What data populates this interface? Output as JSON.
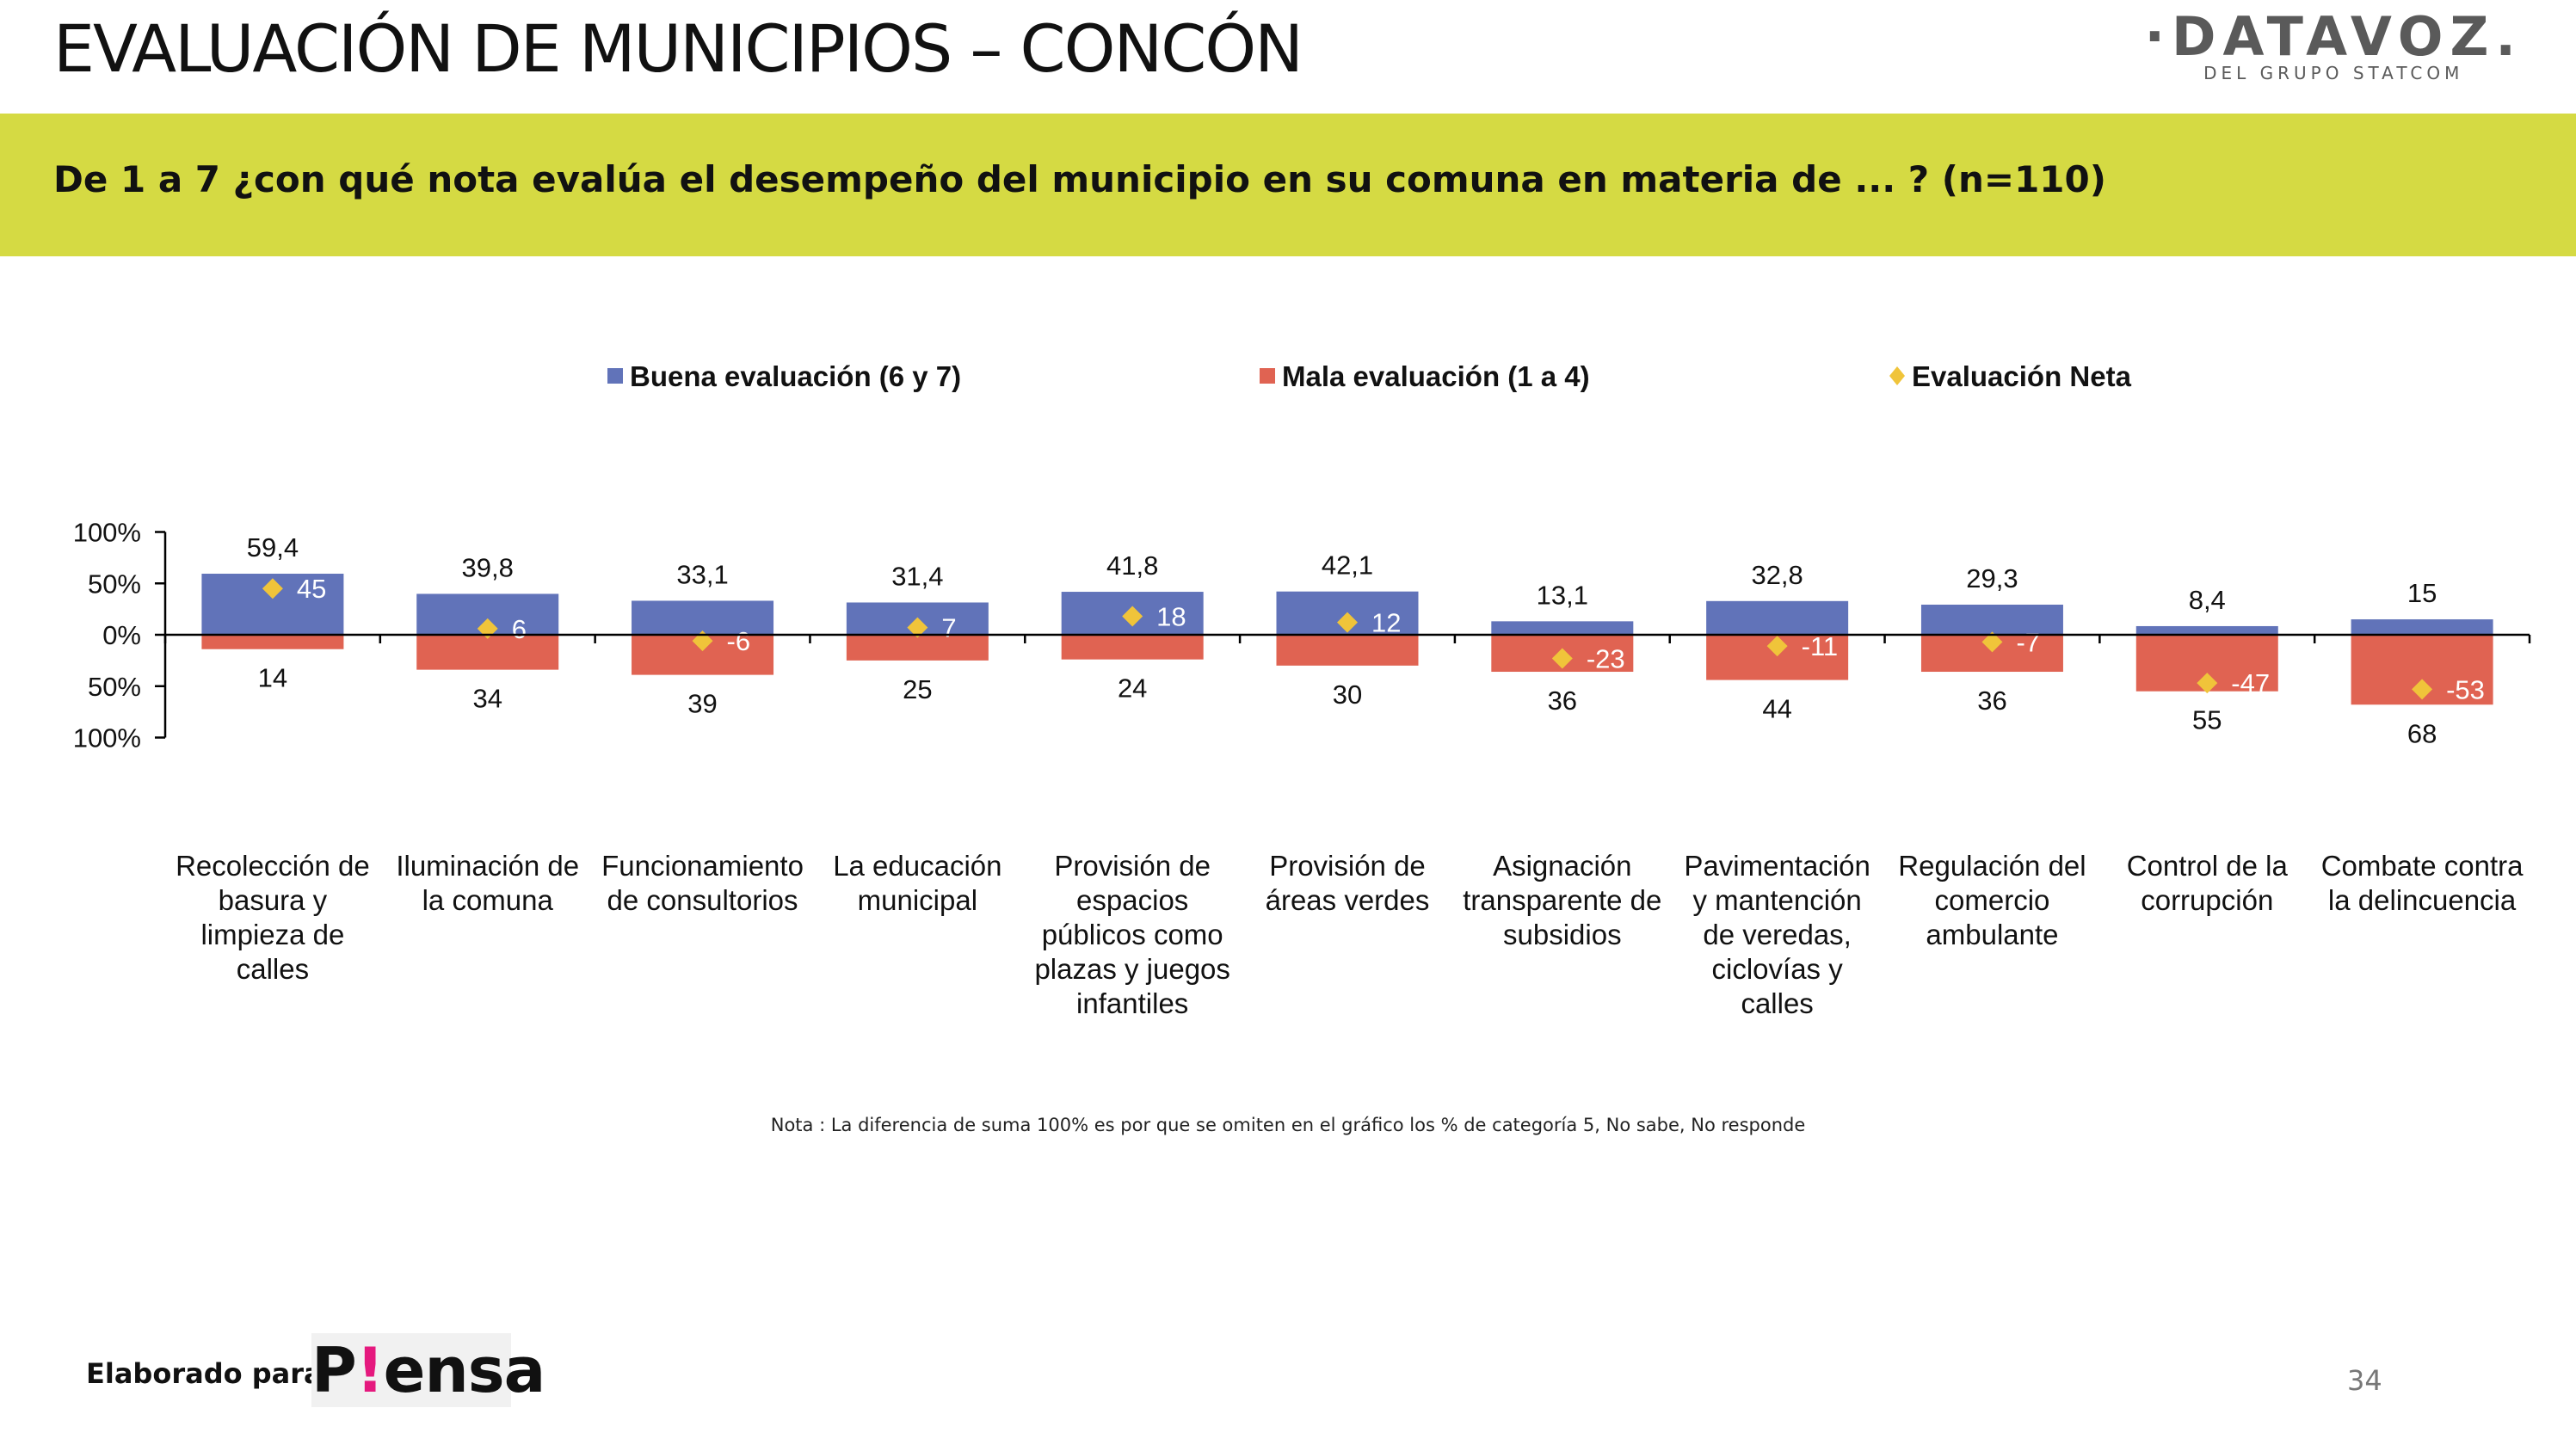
{
  "header": {
    "title": "EVALUACIÓN DE MUNICIPIOS – CONCÓN",
    "logo_main": "·DATAVOZ.",
    "logo_sub": "DEL GRUPO STATCOM",
    "question": "De 1 a 7 ¿con qué nota evalúa el desempeño del municipio en su comuna en materia de ... ? (n=110)"
  },
  "colors": {
    "good": "#6173b9",
    "bad": "#e06352",
    "net": "#f0c43a",
    "band": "#d5da43"
  },
  "chart_data": {
    "type": "bar",
    "legend_position": "top",
    "y_tick_labels": [
      "100%",
      "50%",
      "0%",
      "50%",
      "100%"
    ],
    "y_ticks": [
      100,
      50,
      0,
      -50,
      -100
    ],
    "ylim": [
      -100,
      100
    ],
    "categories": [
      [
        "Recolección de",
        "basura y",
        "limpieza de",
        "calles"
      ],
      [
        "Iluminación de",
        "la comuna"
      ],
      [
        "Funcionamiento",
        "de consultorios"
      ],
      [
        "La educación",
        "municipal"
      ],
      [
        "Provisión de",
        "espacios",
        "públicos como",
        "plazas y juegos",
        "infantiles"
      ],
      [
        "Provisión de",
        "áreas verdes"
      ],
      [
        "Asignación",
        "transparente de",
        "subsidios"
      ],
      [
        "Pavimentación",
        "y mantención",
        "de veredas,",
        "ciclovías y",
        "calles"
      ],
      [
        "Regulación del",
        "comercio",
        "ambulante"
      ],
      [
        "Control de la",
        "corrupción"
      ],
      [
        "Combate contra",
        "la delincuencia"
      ]
    ],
    "series": [
      {
        "name": "Buena evaluación (6 y 7)",
        "values": [
          59.4,
          39.8,
          33.1,
          31.4,
          41.8,
          42.1,
          13.1,
          32.8,
          29.3,
          8.4,
          15
        ],
        "labels": [
          "59,4",
          "39,8",
          "33,1",
          "31,4",
          "41,8",
          "42,1",
          "13,1",
          "32,8",
          "29,3",
          "8,4",
          "15"
        ]
      },
      {
        "name": "Mala evaluación (1 a 4)",
        "values": [
          14,
          34,
          39,
          25,
          24,
          30,
          36,
          44,
          36,
          55,
          68
        ],
        "labels": [
          "14",
          "34",
          "39",
          "25",
          "24",
          "30",
          "36",
          "44",
          "36",
          "55",
          "68"
        ]
      },
      {
        "name": "Evaluación Neta",
        "values": [
          45,
          6,
          -6,
          7,
          18,
          12,
          -23,
          -11,
          -7,
          -47,
          -53
        ],
        "labels": [
          "45",
          "6",
          "-6",
          "7",
          "18",
          "12",
          "-23",
          "-11",
          "-7",
          "-47",
          "-53"
        ]
      }
    ]
  },
  "note": "Nota : La diferencia de suma 100% es por que se omiten en el gráfico los % de categoría 5, No sabe, No responde",
  "footer": {
    "label": "Elaborado para:",
    "brand_p": "P",
    "brand_bang": "!",
    "brand_rest": "ensa",
    "page_number": "34"
  }
}
